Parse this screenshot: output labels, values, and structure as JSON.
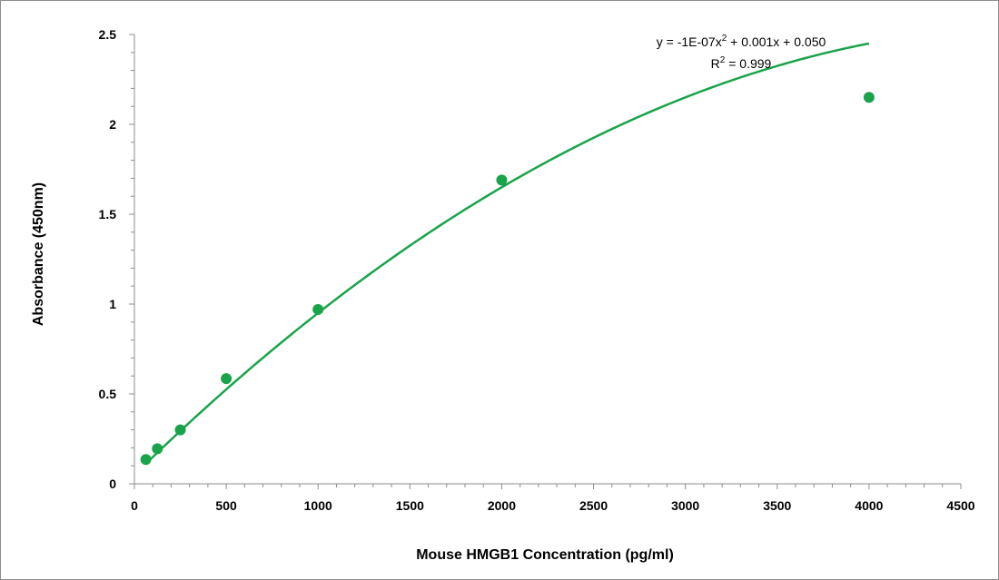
{
  "chart_data": {
    "type": "scatter",
    "title": "",
    "xlabel": "Mouse HMGB1 Concentration (pg/ml)",
    "ylabel": "Absorbance (450nm)",
    "xlim": [
      0,
      4500
    ],
    "ylim": [
      0,
      2.5
    ],
    "xticks": [
      0,
      500,
      1000,
      1500,
      2000,
      2500,
      3000,
      3500,
      4000,
      4500
    ],
    "yticks": [
      0,
      0.5,
      1,
      1.5,
      2,
      2.5
    ],
    "x_tick_labels": [
      "0",
      "500",
      "1000",
      "1500",
      "2000",
      "2500",
      "3000",
      "3500",
      "4000",
      "4500"
    ],
    "y_tick_labels": [
      "0",
      "0.5",
      "1",
      "1.5",
      "2",
      "2.5"
    ],
    "grid": false,
    "legend": "none",
    "series": [
      {
        "points": [
          {
            "x": 62.5,
            "y": 0.135
          },
          {
            "x": 125,
            "y": 0.195
          },
          {
            "x": 250,
            "y": 0.3
          },
          {
            "x": 500,
            "y": 0.585
          },
          {
            "x": 1000,
            "y": 0.97
          },
          {
            "x": 2000,
            "y": 1.69
          },
          {
            "x": 4000,
            "y": 2.15
          }
        ],
        "color": "#1aa34a"
      }
    ],
    "trendline": {
      "kind": "polynomial-2",
      "coefficients": {
        "a": -1e-07,
        "b": 0.001,
        "c": 0.05
      },
      "x_range": [
        62.5,
        4000
      ],
      "color": "#1aa34a",
      "equation_parts": {
        "prefix": "y = -1E-07x",
        "exp": "2",
        "suffix": " + 0.001x + 0.050"
      },
      "r2_parts": {
        "prefix": "R",
        "exp": "2",
        "suffix": " = 0.999"
      }
    }
  }
}
